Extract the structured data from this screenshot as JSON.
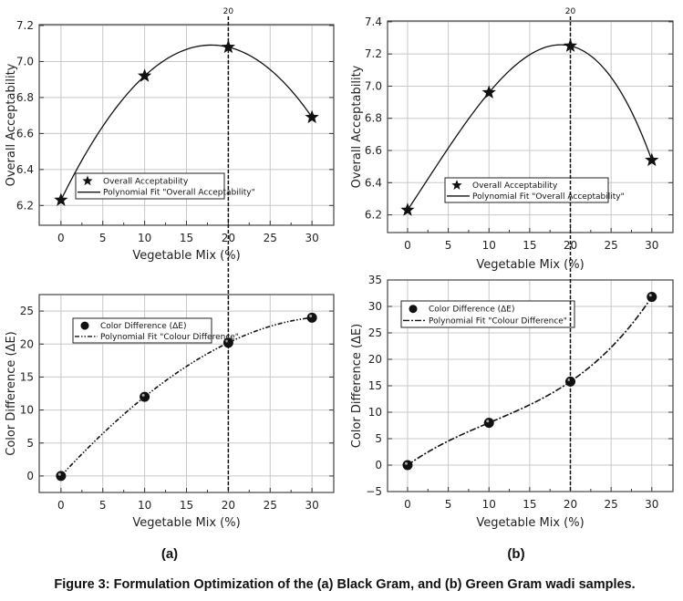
{
  "figure": {
    "panel_a_label": "(a)",
    "panel_b_label": "(b)",
    "caption": "Figure 3: Formulation Optimization of the (a) Black Gram, and (b) Green Gram wadi samples."
  },
  "chart_data": [
    {
      "id": "a-top",
      "type": "line",
      "panel": "(a)",
      "xlabel": "Vegetable Mix (%)",
      "ylabel": "Overall Acceptability",
      "x": [
        0,
        10,
        20,
        30
      ],
      "values": [
        6.23,
        6.92,
        7.08,
        6.69
      ],
      "xlim": [
        -2.6,
        32.6
      ],
      "ylim": [
        6.09,
        7.205
      ],
      "xticks": [
        0,
        5,
        10,
        15,
        20,
        25,
        30
      ],
      "xtick_labels": [
        "0",
        "5",
        "10",
        "15",
        "20",
        "25",
        "30"
      ],
      "yticks": [
        6.2,
        6.4,
        6.6,
        6.8,
        7.0,
        7.2
      ],
      "ytick_labels": [
        "6.2",
        "6.4",
        "6.6",
        "6.8",
        "7.0",
        "7.2"
      ],
      "marker": "star",
      "fit_style": "solid",
      "legend": [
        "Overall Acceptability",
        "Polynomial Fit \"Overall Acceptability\""
      ],
      "vline": 20,
      "vline_label": "20",
      "grid": true,
      "legend_position": "lower-left"
    },
    {
      "id": "b-top",
      "type": "line",
      "panel": "(b)",
      "xlabel": "Vegetable Mix (%)",
      "ylabel": "Overall Acceptability",
      "x": [
        0,
        10,
        20,
        30
      ],
      "values": [
        6.23,
        6.96,
        7.25,
        6.54
      ],
      "xlim": [
        -2.46,
        32.6
      ],
      "ylim": [
        6.09,
        7.405
      ],
      "xticks": [
        0,
        5,
        10,
        15,
        20,
        25,
        30
      ],
      "xtick_labels": [
        "0",
        "5",
        "10",
        "15",
        "20",
        "25",
        "30"
      ],
      "yticks": [
        6.2,
        6.4,
        6.6,
        6.8,
        7.0,
        7.2,
        7.4
      ],
      "ytick_labels": [
        "6.2",
        "6.4",
        "6.6",
        "6.8",
        "7.0",
        "7.2",
        "7.4"
      ],
      "marker": "star",
      "fit_style": "solid",
      "legend": [
        "Overall Acceptability",
        "Polynomial Fit \"Overall Acceptability\""
      ],
      "vline": 20,
      "vline_label": "20",
      "grid": true,
      "legend_position": "lower-center"
    },
    {
      "id": "a-bottom",
      "type": "line",
      "panel": "(a)",
      "xlabel": "Vegetable Mix (%)",
      "ylabel": "Color Difference (ΔE)",
      "x": [
        0,
        10,
        20,
        30
      ],
      "values": [
        0,
        12,
        20.2,
        24
      ],
      "xlim": [
        -2.6,
        32.6
      ],
      "ylim": [
        -2.5,
        27.5
      ],
      "xticks": [
        0,
        5,
        10,
        15,
        20,
        25,
        30
      ],
      "xtick_labels": [
        "0",
        "5",
        "10",
        "15",
        "20",
        "25",
        "30"
      ],
      "yticks": [
        0,
        5,
        10,
        15,
        20,
        25
      ],
      "ytick_labels": [
        "0",
        "5",
        "10",
        "15",
        "20",
        "25"
      ],
      "marker": "circle",
      "fit_style": "dash-dot-dot",
      "legend": [
        "Color Difference (ΔE)",
        "Polynomial Fit \"Colour Difference\""
      ],
      "vline": 20,
      "grid": true,
      "legend_position": "upper-left"
    },
    {
      "id": "b-bottom",
      "type": "line",
      "panel": "(b)",
      "xlabel": "Vegetable Mix (%)",
      "ylabel": "Color Difference (ΔE)",
      "x": [
        0,
        10,
        20,
        30
      ],
      "values": [
        0,
        8,
        15.8,
        31.8
      ],
      "xlim": [
        -2.46,
        32.6
      ],
      "ylim": [
        -5,
        35
      ],
      "xticks": [
        0,
        5,
        10,
        15,
        20,
        25,
        30
      ],
      "xtick_labels": [
        "0",
        "5",
        "10",
        "15",
        "20",
        "25",
        "30"
      ],
      "yticks": [
        -5,
        0,
        5,
        10,
        15,
        20,
        25,
        30,
        35
      ],
      "ytick_labels": [
        "−5",
        "0",
        "5",
        "10",
        "15",
        "20",
        "25",
        "30",
        "35"
      ],
      "marker": "circle",
      "fit_style": "dash-dot",
      "legend": [
        "Color Difference (ΔE)",
        "Polynomial Fit \"Colour Difference\""
      ],
      "vline": 20,
      "grid": true,
      "legend_position": "upper-left"
    }
  ]
}
